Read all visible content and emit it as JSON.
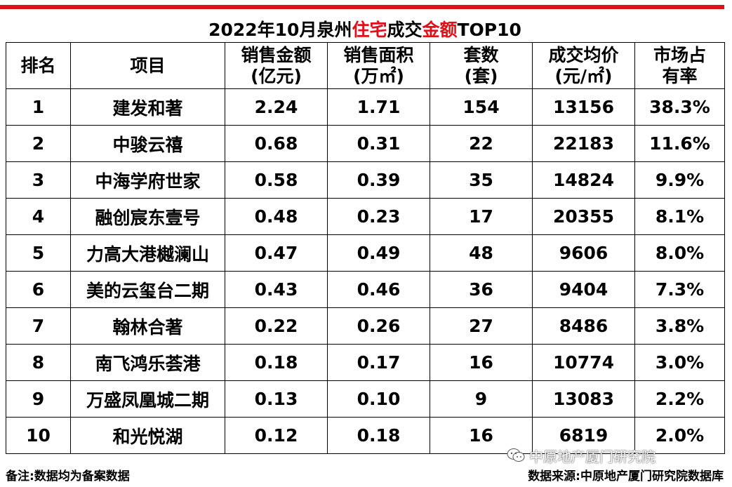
{
  "title": {
    "part1": "2022年10月泉州",
    "part2_red": "住宅",
    "part3": "成交",
    "part4_red": "金额",
    "part5": "TOP10"
  },
  "colors": {
    "accent_red": "#e10f1a"
  },
  "headers": {
    "rank": "排名",
    "project": "项目",
    "amount_line1": "销售金额",
    "amount_line2": "(亿元)",
    "area_line1": "销售面积",
    "area_line2": "(万㎡)",
    "units_line1": "套数",
    "units_line2": "(套)",
    "price_line1": "成交均价",
    "price_line2": "(元/㎡)",
    "share_line1": "市场占",
    "share_line2": "有率"
  },
  "rows": [
    {
      "rank": "1",
      "project": "建发和著",
      "amount": "2.24",
      "area": "1.71",
      "units": "154",
      "price": "13156",
      "share": "38.3%"
    },
    {
      "rank": "2",
      "project": "中骏云禧",
      "amount": "0.68",
      "area": "0.31",
      "units": "22",
      "price": "22183",
      "share": "11.6%"
    },
    {
      "rank": "3",
      "project": "中海学府世家",
      "amount": "0.58",
      "area": "0.39",
      "units": "35",
      "price": "14824",
      "share": "9.9%"
    },
    {
      "rank": "4",
      "project": "融创宸东壹号",
      "amount": "0.48",
      "area": "0.23",
      "units": "17",
      "price": "20355",
      "share": "8.1%"
    },
    {
      "rank": "5",
      "project": "力高大港樾澜山",
      "amount": "0.47",
      "area": "0.49",
      "units": "48",
      "price": "9606",
      "share": "8.0%"
    },
    {
      "rank": "6",
      "project": "美的云玺台二期",
      "amount": "0.43",
      "area": "0.46",
      "units": "36",
      "price": "9404",
      "share": "7.3%"
    },
    {
      "rank": "7",
      "project": "翰林合著",
      "amount": "0.22",
      "area": "0.26",
      "units": "27",
      "price": "8486",
      "share": "3.8%"
    },
    {
      "rank": "8",
      "project": "南飞鸿乐荟港",
      "amount": "0.18",
      "area": "0.17",
      "units": "16",
      "price": "10774",
      "share": "3.0%"
    },
    {
      "rank": "9",
      "project": "万盛凤凰城二期",
      "amount": "0.13",
      "area": "0.10",
      "units": "9",
      "price": "13083",
      "share": "2.2%"
    },
    {
      "rank": "10",
      "project": "和光悦湖",
      "amount": "0.12",
      "area": "0.18",
      "units": "16",
      "price": "6819",
      "share": "2.0%"
    }
  ],
  "footer": {
    "note": "备注:数据均为备案数据",
    "source": "数据来源:中原地产厦门研究院数据库"
  },
  "wechat": {
    "icon": "wechat-icon",
    "label": "中原地产厦门研究院"
  }
}
